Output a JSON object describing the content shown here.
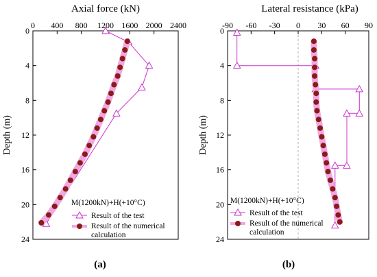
{
  "chart_data": [
    {
      "type": "line",
      "panel_label": "(a)",
      "title": "Axial force (kN)",
      "ylabel": "Depth (m)",
      "xlim": [
        0,
        2400
      ],
      "ylim": [
        0,
        24
      ],
      "y_inverted": true,
      "x_axis_position": "top",
      "xticks": [
        "0",
        "400",
        "800",
        "1200",
        "1600",
        "2000",
        "2400"
      ],
      "yticks": [
        "0",
        "4",
        "8",
        "12",
        "16",
        "20",
        "24"
      ],
      "annotation": "M(1200kN)+H(+10°C)",
      "legend_position": "bottom-right",
      "series": [
        {
          "name": "Result of the test",
          "marker": "triangle-open",
          "color": "#cc33cc",
          "points": [
            [
              1200,
              0
            ],
            [
              1580,
              1.3
            ],
            [
              1920,
              4.0
            ],
            [
              1800,
              6.5
            ],
            [
              1380,
              9.5
            ],
            [
              220,
              22.2
            ]
          ]
        },
        {
          "name": "Result of the numerical calculation",
          "marker": "circle-filled",
          "color": "#8b1a1a",
          "halo": "#f0a8e0",
          "points": [
            [
              1560,
              1.2
            ],
            [
              1520,
              2.2
            ],
            [
              1480,
              3.2
            ],
            [
              1440,
              4.2
            ],
            [
              1400,
              5.2
            ],
            [
              1340,
              6.2
            ],
            [
              1290,
              7.2
            ],
            [
              1240,
              8.2
            ],
            [
              1180,
              9.2
            ],
            [
              1120,
              10.2
            ],
            [
              1060,
              11.2
            ],
            [
              1000,
              12.2
            ],
            [
              930,
              13.2
            ],
            [
              860,
              14.2
            ],
            [
              780,
              15.2
            ],
            [
              700,
              16.2
            ],
            [
              620,
              17.2
            ],
            [
              540,
              18.2
            ],
            [
              450,
              19.2
            ],
            [
              360,
              20.2
            ],
            [
              260,
              21.2
            ],
            [
              140,
              22.1
            ]
          ]
        }
      ]
    },
    {
      "type": "line",
      "panel_label": "(b)",
      "title": "Lateral resistance (kPa)",
      "xlim": [
        -90,
        90
      ],
      "ylim": [
        0,
        24
      ],
      "y_inverted": true,
      "x_axis_position": "top",
      "xticks": [
        "-90",
        "-60",
        "-30",
        "0",
        "30",
        "60",
        "90"
      ],
      "yticks": [
        "0",
        "4",
        "8",
        "12",
        "16",
        "20",
        "24"
      ],
      "annotation": "M(1200kN)+H(+10°C)",
      "legend_position": "bottom-left",
      "series": [
        {
          "name": "Result of the test",
          "marker": "triangle-open",
          "color": "#cc33cc",
          "points": [
            [
              -78,
              0.2
            ],
            [
              -78,
              4.0
            ],
            [
              22,
              4.0
            ],
            [
              22,
              6.7
            ],
            [
              78,
              6.7
            ],
            [
              78,
              9.5
            ],
            [
              62,
              9.5
            ],
            [
              62,
              15.5
            ],
            [
              47,
              15.5
            ],
            [
              47,
              22.4
            ]
          ]
        },
        {
          "name": "Result of the numerical calculation",
          "marker": "circle-filled",
          "color": "#8b1a1a",
          "halo": "#f0a8e0",
          "points": [
            [
              20,
              1.2
            ],
            [
              20,
              2.2
            ],
            [
              21,
              3.2
            ],
            [
              21,
              4.2
            ],
            [
              21,
              5.2
            ],
            [
              22,
              6.2
            ],
            [
              23,
              7.2
            ],
            [
              23,
              8.2
            ],
            [
              24,
              9.2
            ],
            [
              26,
              10.2
            ],
            [
              28,
              11.2
            ],
            [
              30,
              12.2
            ],
            [
              32,
              13.2
            ],
            [
              34,
              14.2
            ],
            [
              36,
              15.2
            ],
            [
              38,
              16.2
            ],
            [
              41,
              17.2
            ],
            [
              44,
              18.2
            ],
            [
              47,
              19.2
            ],
            [
              49,
              20.2
            ],
            [
              51,
              21.2
            ],
            [
              53,
              22.0
            ]
          ]
        }
      ]
    }
  ]
}
